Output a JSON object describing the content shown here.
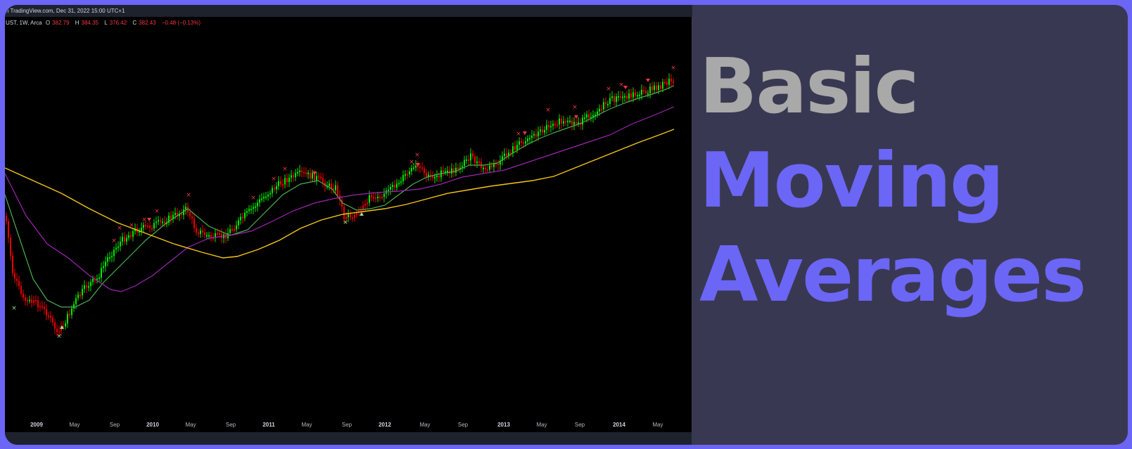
{
  "header": {
    "source": "n TradingView.com, Dec 31, 2022 15:00 UTC+1"
  },
  "legend": {
    "symbol": "UST, 1W, Arca",
    "o_label": "O",
    "o_value": "382.79",
    "h_label": "H",
    "h_value": "384.35",
    "l_label": "L",
    "l_value": "376.42",
    "c_label": "C",
    "c_value": "382.43",
    "change": "−0.48 (−0.13%)"
  },
  "title": {
    "line1": "Basic",
    "line2": "Moving",
    "line3": "Averages"
  },
  "colors": {
    "accent": "#6b66f5",
    "panel": "#393852",
    "up_candle": "#00e600",
    "down_candle": "#e60000",
    "ma_fast": "#4caf50",
    "ma_mid": "#9c27b0",
    "ma_slow": "#f5c518",
    "signal_sell": "#f23645",
    "signal_buy": "#8fe39b"
  },
  "chart_data": {
    "type": "line",
    "x_ticks": [
      "2009",
      "May",
      "Sep",
      "2010",
      "May",
      "Sep",
      "2011",
      "May",
      "Sep",
      "2012",
      "May",
      "Sep",
      "2013",
      "May",
      "Sep",
      "2014",
      "May"
    ],
    "x_tick_years": [
      true,
      false,
      false,
      true,
      false,
      false,
      true,
      false,
      false,
      true,
      false,
      false,
      true,
      false,
      false,
      true,
      false
    ],
    "series": [
      {
        "type": "candlestick"
      },
      {
        "type": "line",
        "color": "#4caf50"
      },
      {
        "type": "line",
        "color": "#9c27b0"
      },
      {
        "type": "line",
        "color": "#f5c518"
      }
    ]
  }
}
